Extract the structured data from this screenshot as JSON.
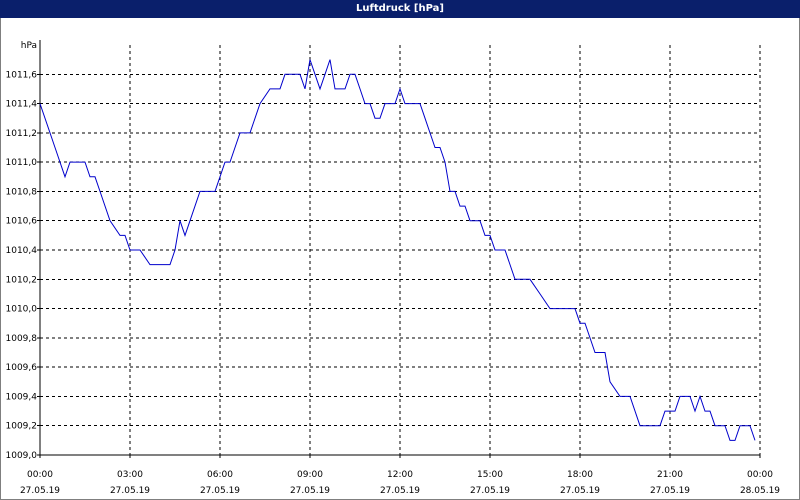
{
  "colors": {
    "title_bar": "#0a1f6b",
    "title_text": "#ffffff",
    "series_line": "#0000cc",
    "grid": "#000000",
    "axis": "#000000"
  },
  "chart_data": {
    "type": "line",
    "title": "Luftdruck [hPa]",
    "ylabel": "hPa",
    "xlabel": "",
    "ylim": [
      1009.0,
      1011.8
    ],
    "grid": true,
    "y_ticks": [
      "1009,0",
      "1009,2",
      "1009,4",
      "1009,6",
      "1009,8",
      "1010,0",
      "1010,2",
      "1010,4",
      "1010,6",
      "1010,8",
      "1011,0",
      "1011,2",
      "1011,4",
      "1011,6"
    ],
    "x_ticks": [
      {
        "time": "00:00",
        "date": "27.05.19"
      },
      {
        "time": "03:00",
        "date": "27.05.19"
      },
      {
        "time": "06:00",
        "date": "27.05.19"
      },
      {
        "time": "09:00",
        "date": "27.05.19"
      },
      {
        "time": "12:00",
        "date": "27.05.19"
      },
      {
        "time": "15:00",
        "date": "27.05.19"
      },
      {
        "time": "18:00",
        "date": "27.05.19"
      },
      {
        "time": "21:00",
        "date": "27.05.19"
      },
      {
        "time": "00:00",
        "date": "28.05.19"
      }
    ],
    "series": [
      {
        "x": [
          "00:00",
          "00:30",
          "00:50",
          "01:00",
          "01:10",
          "01:30",
          "01:40",
          "01:50",
          "02:00",
          "02:20",
          "02:40",
          "02:50",
          "03:00",
          "03:20",
          "03:40",
          "04:00",
          "04:20",
          "04:30",
          "04:40",
          "04:50",
          "05:00",
          "05:20",
          "05:30",
          "05:40",
          "05:50",
          "06:00",
          "06:10",
          "06:20",
          "06:30",
          "06:40",
          "07:00",
          "07:20",
          "07:40",
          "08:00",
          "08:10",
          "08:20",
          "08:30",
          "08:40",
          "08:50",
          "09:00",
          "09:10",
          "09:20",
          "09:30",
          "09:40",
          "09:50",
          "10:00",
          "10:10",
          "10:20",
          "10:30",
          "10:40",
          "10:50",
          "11:00",
          "11:10",
          "11:20",
          "11:30",
          "11:40",
          "11:50",
          "12:00",
          "12:10",
          "12:20",
          "12:30",
          "12:40",
          "12:50",
          "13:00",
          "13:10",
          "13:20",
          "13:30",
          "13:40",
          "13:50",
          "14:00",
          "14:10",
          "14:20",
          "14:30",
          "14:40",
          "14:50",
          "15:00",
          "15:10",
          "15:20",
          "15:30",
          "15:40",
          "15:50",
          "16:00",
          "16:20",
          "16:40",
          "17:00",
          "17:20",
          "17:30",
          "17:40",
          "17:50",
          "18:00",
          "18:10",
          "18:20",
          "18:30",
          "18:40",
          "18:50",
          "19:00",
          "19:20",
          "19:40",
          "20:00",
          "20:20",
          "20:30",
          "20:40",
          "20:50",
          "21:00",
          "21:10",
          "21:20",
          "21:30",
          "21:40",
          "21:50",
          "22:00",
          "22:10",
          "22:20",
          "22:30",
          "22:40",
          "22:50",
          "23:00",
          "23:10",
          "23:20",
          "23:30",
          "23:40",
          "23:50"
        ],
        "y": [
          1011.4,
          1011.1,
          1010.9,
          1011.0,
          1011.0,
          1011.0,
          1010.9,
          1010.9,
          1010.8,
          1010.6,
          1010.5,
          1010.5,
          1010.4,
          1010.4,
          1010.3,
          1010.3,
          1010.3,
          1010.4,
          1010.6,
          1010.5,
          1010.6,
          1010.8,
          1010.8,
          1010.8,
          1010.8,
          1010.9,
          1011.0,
          1011.0,
          1011.1,
          1011.2,
          1011.2,
          1011.4,
          1011.5,
          1011.5,
          1011.6,
          1011.6,
          1011.6,
          1011.6,
          1011.5,
          1011.7,
          1011.6,
          1011.5,
          1011.6,
          1011.7,
          1011.5,
          1011.5,
          1011.5,
          1011.6,
          1011.6,
          1011.5,
          1011.4,
          1011.4,
          1011.3,
          1011.3,
          1011.4,
          1011.4,
          1011.4,
          1011.5,
          1011.4,
          1011.4,
          1011.4,
          1011.4,
          1011.3,
          1011.2,
          1011.1,
          1011.1,
          1011.0,
          1010.8,
          1010.8,
          1010.7,
          1010.7,
          1010.6,
          1010.6,
          1010.6,
          1010.5,
          1010.5,
          1010.4,
          1010.4,
          1010.4,
          1010.3,
          1010.2,
          1010.2,
          1010.2,
          1010.1,
          1010.0,
          1010.0,
          1010.0,
          1010.0,
          1010.0,
          1009.9,
          1009.9,
          1009.8,
          1009.7,
          1009.7,
          1009.7,
          1009.5,
          1009.4,
          1009.4,
          1009.2,
          1009.2,
          1009.2,
          1009.2,
          1009.3,
          1009.3,
          1009.3,
          1009.4,
          1009.4,
          1009.4,
          1009.3,
          1009.4,
          1009.3,
          1009.3,
          1009.2,
          1009.2,
          1009.2,
          1009.1,
          1009.1,
          1009.2,
          1009.2,
          1009.2,
          1009.1
        ]
      }
    ]
  }
}
